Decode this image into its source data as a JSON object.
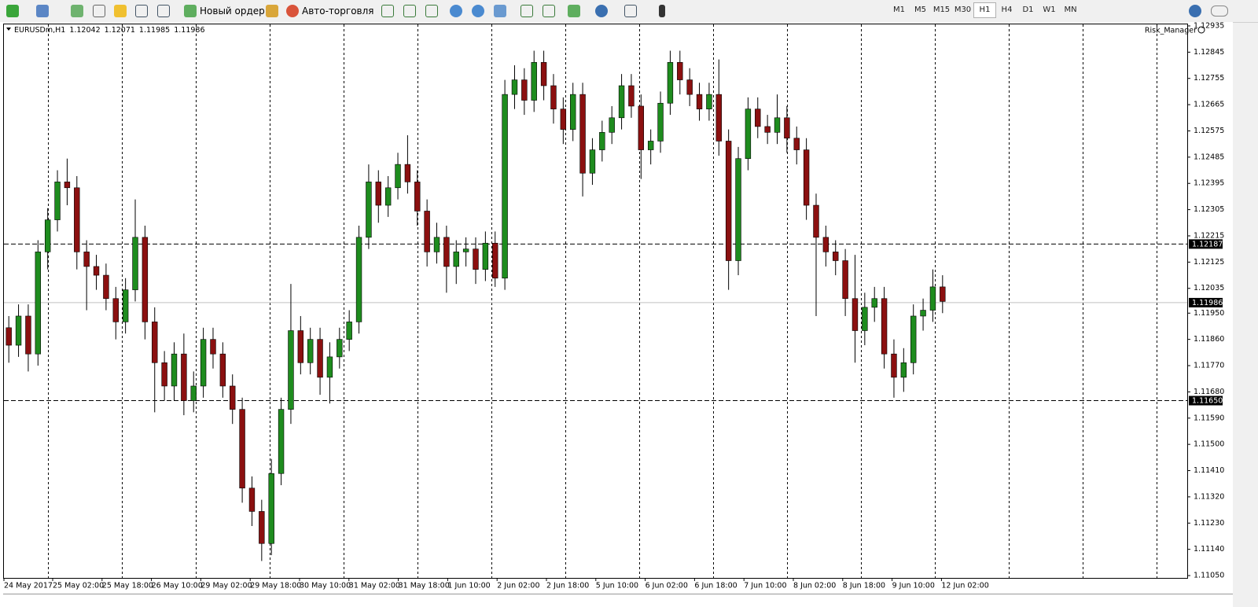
{
  "toolbar": {
    "new_order": "Новый ордер",
    "auto_trading": "Авто-торговля",
    "timeframes": [
      "M1",
      "M5",
      "M15",
      "M30",
      "H1",
      "H4",
      "D1",
      "W1",
      "MN"
    ]
  },
  "chart_data": {
    "type": "candlestick",
    "symbol": "EURUSDm,H1",
    "header_values": [
      1.12042,
      1.12071,
      1.11985,
      1.11986
    ],
    "indicator": "Risk_Manager",
    "time_labels": [
      "24 May 2017",
      "25 May 02:00",
      "25 May 18:00",
      "26 May 10:00",
      "29 May 02:00",
      "29 May 18:00",
      "30 May 10:00",
      "31 May 02:00",
      "31 May 18:00",
      "1 Jun 10:00",
      "2 Jun 02:00",
      "2 Jun 18:00",
      "5 Jun 10:00",
      "6 Jun 02:00",
      "6 Jun 18:00",
      "7 Jun 10:00",
      "8 Jun 02:00",
      "8 Jun 18:00",
      "9 Jun 10:00",
      "12 Jun 02:00"
    ],
    "open": [
      1.119,
      1.1184,
      1.1194,
      1.1181,
      1.1216,
      1.1227,
      1.124,
      1.1238,
      1.1216,
      1.1211,
      1.1208,
      1.12,
      1.1192,
      1.1203,
      1.1221,
      1.1192,
      1.1178,
      1.117,
      1.1181,
      1.1165,
      1.117,
      1.1186,
      1.1181,
      1.117,
      1.1162,
      1.1135,
      1.1127,
      1.1116,
      1.114,
      1.1162,
      1.1189,
      1.1178,
      1.1186,
      1.1173,
      1.118,
      1.1186,
      1.1192,
      1.1221,
      1.124,
      1.1232,
      1.1238,
      1.1246,
      1.124,
      1.123,
      1.1216,
      1.1221,
      1.1211,
      1.1216,
      1.1217,
      1.121,
      1.1219,
      1.1207,
      1.127,
      1.1275,
      1.1268,
      1.1281,
      1.1273,
      1.1265,
      1.1258,
      1.127,
      1.1243,
      1.1251,
      1.1257,
      1.1262,
      1.1273,
      1.1266,
      1.1251,
      1.1254,
      1.1267,
      1.1281,
      1.1275,
      1.127,
      1.1265,
      1.127,
      1.1254,
      1.1213,
      1.1248,
      1.1265,
      1.1259,
      1.1257,
      1.1262,
      1.1255,
      1.1251,
      1.1232,
      1.1221,
      1.1216,
      1.1213,
      1.12,
      1.1189,
      1.1197,
      1.12,
      1.1181,
      1.1173,
      1.1178,
      1.1194,
      1.1196,
      1.1204
    ],
    "high": [
      1.1194,
      1.1198,
      1.1198,
      1.122,
      1.1231,
      1.1244,
      1.1248,
      1.1242,
      1.122,
      1.1215,
      1.1212,
      1.1204,
      1.1207,
      1.1234,
      1.1225,
      1.1197,
      1.1182,
      1.1185,
      1.1188,
      1.1175,
      1.119,
      1.119,
      1.1185,
      1.1174,
      1.1166,
      1.1139,
      1.1131,
      1.1145,
      1.1166,
      1.1205,
      1.1194,
      1.119,
      1.119,
      1.1185,
      1.119,
      1.1196,
      1.1225,
      1.1246,
      1.1244,
      1.1242,
      1.125,
      1.1256,
      1.1244,
      1.1234,
      1.1226,
      1.1225,
      1.122,
      1.1221,
      1.1221,
      1.1223,
      1.1223,
      1.1275,
      1.128,
      1.1279,
      1.1285,
      1.1285,
      1.1277,
      1.1269,
      1.1274,
      1.1274,
      1.1255,
      1.1261,
      1.1266,
      1.1277,
      1.1277,
      1.127,
      1.1258,
      1.1271,
      1.1285,
      1.1285,
      1.1279,
      1.1274,
      1.1274,
      1.1282,
      1.1258,
      1.1252,
      1.1269,
      1.1269,
      1.1263,
      1.127,
      1.1266,
      1.1259,
      1.1255,
      1.1236,
      1.1225,
      1.122,
      1.1217,
      1.1215,
      1.1202,
      1.1204,
      1.1204,
      1.1186,
      1.1183,
      1.1198,
      1.12,
      1.121,
      1.1208
    ],
    "low": [
      1.1178,
      1.118,
      1.1175,
      1.1177,
      1.121,
      1.1223,
      1.1232,
      1.121,
      1.1196,
      1.1203,
      1.1196,
      1.1186,
      1.1188,
      1.1199,
      1.1186,
      1.1161,
      1.1165,
      1.1165,
      1.116,
      1.1161,
      1.1166,
      1.1176,
      1.1166,
      1.1157,
      1.113,
      1.1122,
      1.111,
      1.1112,
      1.1136,
      1.1157,
      1.1174,
      1.1174,
      1.1167,
      1.1164,
      1.1176,
      1.1182,
      1.1188,
      1.1217,
      1.1226,
      1.1228,
      1.1234,
      1.1236,
      1.1225,
      1.1211,
      1.1212,
      1.1202,
      1.1205,
      1.1211,
      1.1205,
      1.1206,
      1.1204,
      1.1203,
      1.1265,
      1.1263,
      1.1264,
      1.1268,
      1.126,
      1.1253,
      1.1254,
      1.1235,
      1.1239,
      1.1247,
      1.1253,
      1.1258,
      1.1262,
      1.1241,
      1.1246,
      1.125,
      1.1263,
      1.127,
      1.1266,
      1.1261,
      1.1261,
      1.1249,
      1.1203,
      1.1208,
      1.1244,
      1.1255,
      1.1253,
      1.1253,
      1.125,
      1.1246,
      1.1227,
      1.1194,
      1.1211,
      1.1208,
      1.1194,
      1.1178,
      1.1184,
      1.1192,
      1.1176,
      1.1166,
      1.1168,
      1.1174,
      1.1189,
      1.1192,
      1.1195
    ],
    "close": [
      1.1184,
      1.1194,
      1.1181,
      1.1216,
      1.1227,
      1.124,
      1.1238,
      1.1216,
      1.1211,
      1.1208,
      1.12,
      1.1192,
      1.1203,
      1.1221,
      1.1192,
      1.1178,
      1.117,
      1.1181,
      1.1165,
      1.117,
      1.1186,
      1.1181,
      1.117,
      1.1162,
      1.1135,
      1.1127,
      1.1116,
      1.114,
      1.1162,
      1.1189,
      1.1178,
      1.1186,
      1.1173,
      1.118,
      1.1186,
      1.1192,
      1.1221,
      1.124,
      1.1232,
      1.1238,
      1.1246,
      1.124,
      1.123,
      1.1216,
      1.1221,
      1.1211,
      1.1216,
      1.1217,
      1.121,
      1.1219,
      1.1207,
      1.127,
      1.1275,
      1.1268,
      1.1281,
      1.1273,
      1.1265,
      1.1258,
      1.127,
      1.1243,
      1.1251,
      1.1257,
      1.1262,
      1.1273,
      1.1266,
      1.1251,
      1.1254,
      1.1267,
      1.1281,
      1.1275,
      1.127,
      1.1265,
      1.127,
      1.1254,
      1.1213,
      1.1248,
      1.1265,
      1.1259,
      1.1257,
      1.1262,
      1.1255,
      1.1251,
      1.1232,
      1.1221,
      1.1216,
      1.1213,
      1.12,
      1.1189,
      1.1197,
      1.12,
      1.1181,
      1.1173,
      1.1178,
      1.1194,
      1.1196,
      1.1204,
      1.1199
    ],
    "up_color": "#1e8c1e",
    "down_color": "#8b1010",
    "wick_color": "#000000",
    "ylim": [
      1.11042,
      1.12943
    ],
    "yticks": [
      1.12935,
      1.12845,
      1.12755,
      1.12665,
      1.12575,
      1.12485,
      1.12395,
      1.12305,
      1.12215,
      1.12125,
      1.12035,
      {
        "value": 1.1195,
        "label": "1.11950"
      },
      {
        "value": 1.1186,
        "label": "1.11860"
      },
      {
        "value": 1.1177,
        "label": "1.11770"
      },
      {
        "value": 1.1168,
        "label": "1.11680"
      },
      {
        "value": 1.1159,
        "label": "1.11590"
      },
      {
        "value": 1.115,
        "label": "1.11500"
      },
      {
        "value": 1.1141,
        "label": "1.11410"
      },
      {
        "value": 1.1132,
        "label": "1.11320"
      },
      {
        "value": 1.1123,
        "label": "1.11230"
      },
      {
        "value": 1.1114,
        "label": "1.11140"
      },
      {
        "value": 1.1105,
        "label": "1.11050"
      }
    ],
    "hlines": [
      1.12187,
      {
        "value": 1.1165,
        "label": "1.11650"
      }
    ],
    "bid_line": 1.11986
  }
}
